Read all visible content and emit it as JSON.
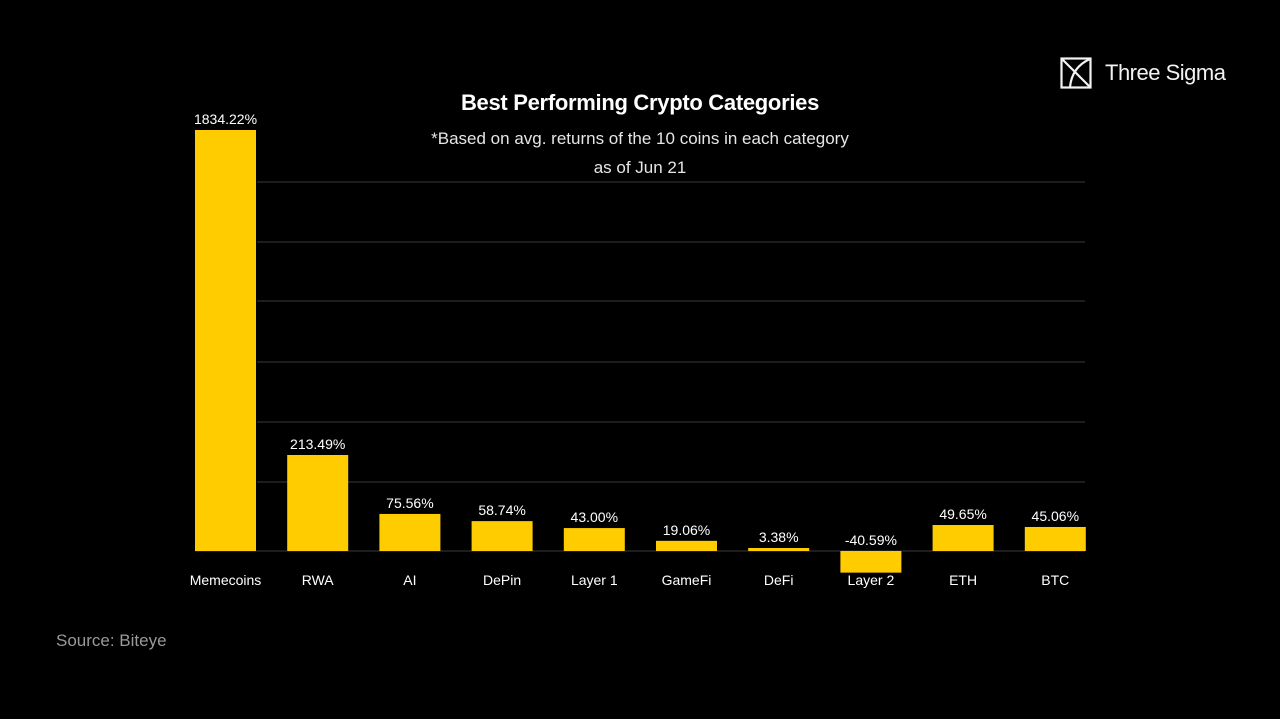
{
  "title": "Best Performing Crypto Categories",
  "subtitle_line1": "*Based on avg. returns of the 10 coins in each category",
  "subtitle_line2": "as of Jun 21",
  "brand": {
    "name": "Three Sigma",
    "icon": "three-sigma-logo-icon"
  },
  "source": "Source: Biteye",
  "colors": {
    "bar": "#FFCC00",
    "background": "#000000",
    "grid": "#3a3a3a"
  },
  "chart_data": {
    "type": "bar",
    "categories": [
      "Memecoins",
      "RWA",
      "AI",
      "DePin",
      "Layer 1",
      "GameFi",
      "DeFi",
      "Layer 2",
      "ETH",
      "BTC"
    ],
    "values": [
      1834.22,
      213.49,
      75.56,
      58.74,
      43.0,
      19.06,
      3.38,
      -40.59,
      49.65,
      45.06
    ],
    "value_labels": [
      "1834.22%",
      "213.49%",
      "75.56%",
      "58.74%",
      "43.00%",
      "19.06%",
      "3.38%",
      "-40.59%",
      "49.65%",
      "45.06%"
    ],
    "title": "Best Performing Crypto Categories",
    "xlabel": "",
    "ylabel": "",
    "grid": true,
    "legend": "none"
  }
}
